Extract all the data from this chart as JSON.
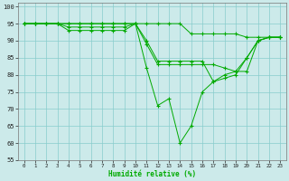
{
  "xlabel": "Humidité relative (%)",
  "x_ticks": [
    0,
    1,
    2,
    3,
    4,
    5,
    6,
    7,
    8,
    9,
    10,
    11,
    12,
    13,
    14,
    15,
    16,
    17,
    18,
    19,
    20,
    21,
    22,
    23
  ],
  "ylim": [
    55,
    101
  ],
  "xlim": [
    -0.5,
    23.5
  ],
  "yticks": [
    55,
    60,
    65,
    70,
    75,
    80,
    85,
    90,
    95,
    100
  ],
  "bg_color": "#cceaea",
  "grid_color": "#88cccc",
  "line_color": "#00aa00",
  "lines": [
    [
      95,
      95,
      95,
      95,
      95,
      95,
      95,
      95,
      95,
      95,
      95,
      95,
      95,
      95,
      95,
      92,
      92,
      92,
      92,
      92,
      91,
      91,
      91,
      91
    ],
    [
      95,
      95,
      95,
      95,
      94,
      94,
      94,
      94,
      94,
      94,
      95,
      89,
      83,
      83,
      83,
      83,
      83,
      83,
      82,
      81,
      81,
      90,
      91,
      91
    ],
    [
      95,
      95,
      95,
      95,
      93,
      93,
      93,
      93,
      93,
      93,
      95,
      90,
      84,
      84,
      84,
      84,
      84,
      78,
      79,
      80,
      85,
      90,
      91,
      91
    ],
    [
      95,
      95,
      95,
      95,
      95,
      95,
      95,
      95,
      95,
      95,
      95,
      82,
      71,
      73,
      60,
      65,
      75,
      78,
      80,
      81,
      85,
      90,
      91,
      91
    ]
  ]
}
